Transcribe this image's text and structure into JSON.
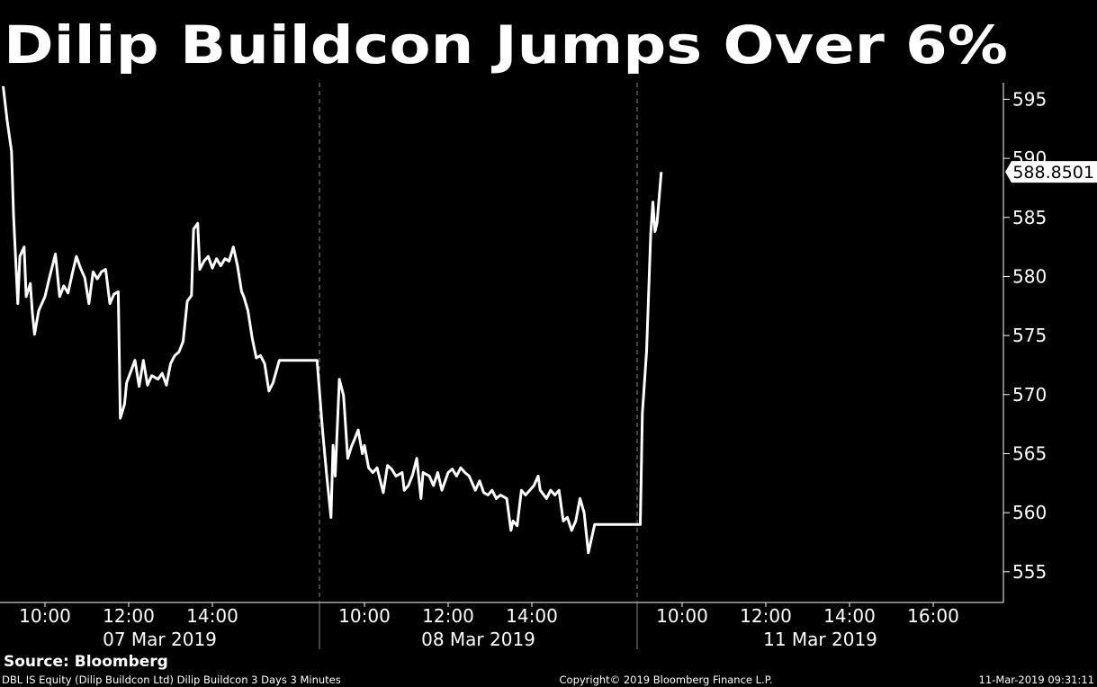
{
  "chart_data": {
    "type": "line",
    "title": "Dilip Buildcon Jumps Over 6%",
    "source": "Source: Bloomberg",
    "footer_left": "DBL IS Equity (Dilip Buildcon Ltd) Dilip Buildcon 3 Days 3 Minutes",
    "footer_center": "Copyright© 2019 Bloomberg Finance L.P.",
    "footer_right": "11-Mar-2019 09:31:11",
    "x_groups": [
      "07 Mar 2019",
      "08 Mar 2019",
      "11 Mar 2019"
    ],
    "color": "#ffffff",
    "x": [
      "2019-03-07T09:00",
      "2019-03-07T09:06",
      "2019-03-07T09:12",
      "2019-03-07T09:15",
      "2019-03-07T09:21",
      "2019-03-07T09:24",
      "2019-03-07T09:30",
      "2019-03-07T09:33",
      "2019-03-07T09:39",
      "2019-03-07T09:42",
      "2019-03-07T09:45",
      "2019-03-07T09:51",
      "2019-03-07T10:00",
      "2019-03-07T10:06",
      "2019-03-07T10:15",
      "2019-03-07T10:21",
      "2019-03-07T10:27",
      "2019-03-07T10:33",
      "2019-03-07T10:39",
      "2019-03-07T10:45",
      "2019-03-07T10:51",
      "2019-03-07T10:57",
      "2019-03-07T11:03",
      "2019-03-07T11:09",
      "2019-03-07T11:15",
      "2019-03-07T11:21",
      "2019-03-07T11:27",
      "2019-03-07T11:33",
      "2019-03-07T11:39",
      "2019-03-07T11:45",
      "2019-03-07T11:48",
      "2019-03-07T11:54",
      "2019-03-07T11:57",
      "2019-03-07T12:09",
      "2019-03-07T12:15",
      "2019-03-07T12:21",
      "2019-03-07T12:27",
      "2019-03-07T12:33",
      "2019-03-07T12:42",
      "2019-03-07T12:48",
      "2019-03-07T12:54",
      "2019-03-07T13:00",
      "2019-03-07T13:06",
      "2019-03-07T13:12",
      "2019-03-07T13:18",
      "2019-03-07T13:24",
      "2019-03-07T13:30",
      "2019-03-07T13:33",
      "2019-03-07T13:39",
      "2019-03-07T13:42",
      "2019-03-07T13:48",
      "2019-03-07T13:54",
      "2019-03-07T14:00",
      "2019-03-07T14:06",
      "2019-03-07T14:12",
      "2019-03-07T14:18",
      "2019-03-07T14:24",
      "2019-03-07T14:30",
      "2019-03-07T14:36",
      "2019-03-07T14:42",
      "2019-03-07T14:45",
      "2019-03-07T14:51",
      "2019-03-07T14:57",
      "2019-03-07T15:03",
      "2019-03-07T15:09",
      "2019-03-07T15:15",
      "2019-03-07T15:21",
      "2019-03-07T15:27",
      "2019-03-07T15:36",
      "2019-03-07T16:30",
      "2019-03-08T09:00",
      "2019-03-08T09:06",
      "2019-03-08T09:12",
      "2019-03-08T09:15",
      "2019-03-08T09:18",
      "2019-03-08T09:24",
      "2019-03-08T09:30",
      "2019-03-08T09:36",
      "2019-03-08T09:42",
      "2019-03-08T09:45",
      "2019-03-08T09:51",
      "2019-03-08T09:57",
      "2019-03-08T10:00",
      "2019-03-08T10:06",
      "2019-03-08T10:12",
      "2019-03-08T10:18",
      "2019-03-08T10:21",
      "2019-03-08T10:27",
      "2019-03-08T10:33",
      "2019-03-08T10:39",
      "2019-03-08T10:45",
      "2019-03-08T10:54",
      "2019-03-08T10:57",
      "2019-03-08T11:03",
      "2019-03-08T11:09",
      "2019-03-08T11:15",
      "2019-03-08T11:21",
      "2019-03-08T11:24",
      "2019-03-08T11:33",
      "2019-03-08T11:39",
      "2019-03-08T11:45",
      "2019-03-08T11:51",
      "2019-03-08T12:00",
      "2019-03-08T12:06",
      "2019-03-08T12:12",
      "2019-03-08T12:18",
      "2019-03-08T12:24",
      "2019-03-08T12:30",
      "2019-03-08T12:39",
      "2019-03-08T12:45",
      "2019-03-08T12:51",
      "2019-03-08T12:57",
      "2019-03-08T13:03",
      "2019-03-08T13:09",
      "2019-03-08T13:15",
      "2019-03-08T13:24",
      "2019-03-08T13:30",
      "2019-03-08T13:33",
      "2019-03-08T13:39",
      "2019-03-08T13:45",
      "2019-03-08T13:51",
      "2019-03-08T13:57",
      "2019-03-08T14:03",
      "2019-03-08T14:09",
      "2019-03-08T14:12",
      "2019-03-08T14:21",
      "2019-03-08T14:27",
      "2019-03-08T14:33",
      "2019-03-08T14:39",
      "2019-03-08T14:45",
      "2019-03-08T14:51",
      "2019-03-08T14:57",
      "2019-03-08T15:03",
      "2019-03-08T15:09",
      "2019-03-08T15:15",
      "2019-03-08T15:21",
      "2019-03-08T15:24",
      "2019-03-08T15:30",
      "2019-03-08T16:30",
      "2019-03-11T09:00",
      "2019-03-11T09:03",
      "2019-03-11T09:09",
      "2019-03-11T09:15",
      "2019-03-11T09:18",
      "2019-03-11T09:21",
      "2019-03-11T09:24",
      "2019-03-11T09:30"
    ],
    "values": [
      596.1,
      593.1,
      590.6,
      585.1,
      577.7,
      581.7,
      582.5,
      578.3,
      579.4,
      576.9,
      575.1,
      577.1,
      578.3,
      579.8,
      581.9,
      578.3,
      579.2,
      578.6,
      580.2,
      581.7,
      580.7,
      579.9,
      577.7,
      580.4,
      579.8,
      580.4,
      580.6,
      577.7,
      578.5,
      578.7,
      568.0,
      569.2,
      571.0,
      572.9,
      570.7,
      572.9,
      570.8,
      571.6,
      571.3,
      571.8,
      570.8,
      572.6,
      573.3,
      573.6,
      574.5,
      577.9,
      578.4,
      584.0,
      584.5,
      580.6,
      581.3,
      581.7,
      580.7,
      581.5,
      580.9,
      581.5,
      581.3,
      582.5,
      580.9,
      578.7,
      578.3,
      577.1,
      574.8,
      573.1,
      573.3,
      572.6,
      570.3,
      571.0,
      572.9,
      572.9,
      566.9,
      563.1,
      559.6,
      565.7,
      563.1,
      571.3,
      569.9,
      564.6,
      565.7,
      566.1,
      567.0,
      565.0,
      565.7,
      563.8,
      563.4,
      563.8,
      563.1,
      561.7,
      564.0,
      563.7,
      563.1,
      563.4,
      561.9,
      562.3,
      563.2,
      564.6,
      561.2,
      563.4,
      563.1,
      562.3,
      563.4,
      561.9,
      563.4,
      563.7,
      563.1,
      563.8,
      563.4,
      563.1,
      561.9,
      562.7,
      561.7,
      561.5,
      561.9,
      561.2,
      561.5,
      561.2,
      558.5,
      559.3,
      558.9,
      561.9,
      561.5,
      561.9,
      562.3,
      563.1,
      561.9,
      561.2,
      561.9,
      561.5,
      561.9,
      559.3,
      559.6,
      558.5,
      559.3,
      561.2,
      560.0,
      556.6,
      557.4,
      559.0,
      559.0,
      559.0,
      568.4,
      573.7,
      583.6,
      586.3,
      583.8,
      584.5,
      588.8501
    ],
    "ylim": [
      552.4,
      596.4
    ],
    "yticks": [
      555,
      560,
      565,
      570,
      575,
      580,
      585,
      590,
      595
    ],
    "xticks": [
      {
        "value": "2019-03-07T10:00",
        "label": "10:00"
      },
      {
        "value": "2019-03-07T12:00",
        "label": "12:00"
      },
      {
        "value": "2019-03-07T14:00",
        "label": "14:00"
      },
      {
        "value": "2019-03-08T10:00",
        "label": "10:00"
      },
      {
        "value": "2019-03-08T12:00",
        "label": "12:00"
      },
      {
        "value": "2019-03-08T14:00",
        "label": "14:00"
      },
      {
        "value": "2019-03-11T10:00",
        "label": "10:00"
      },
      {
        "value": "2019-03-11T12:00",
        "label": "12:00"
      },
      {
        "value": "2019-03-11T14:00",
        "label": "14:00"
      },
      {
        "value": "2019-03-11T16:00",
        "label": "16:00"
      }
    ]
  }
}
